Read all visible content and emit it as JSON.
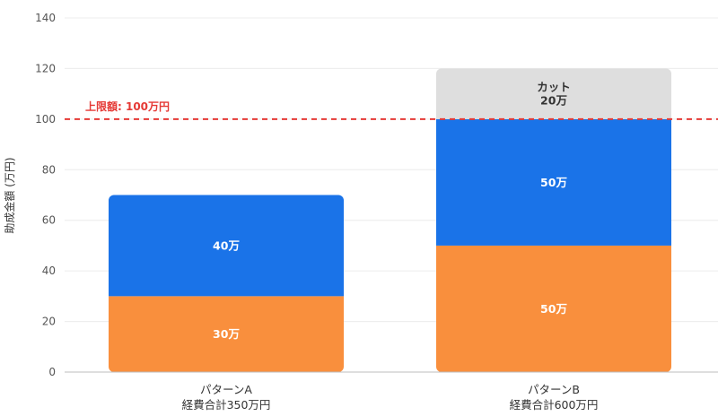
{
  "chart_data": {
    "type": "bar",
    "stacked": true,
    "ylabel": "助成金額 (万円)",
    "ylim": [
      0,
      140
    ],
    "yticks": [
      0,
      20,
      40,
      60,
      80,
      100,
      120,
      140
    ],
    "grid": true,
    "categories": [
      {
        "name": "パターンA",
        "sub": "経費合計350万円"
      },
      {
        "name": "パターンB",
        "sub": "経費合計600万円"
      }
    ],
    "series": [
      {
        "color": "#F98F3D",
        "values": [
          30,
          50
        ],
        "labels": [
          "30万",
          "50万"
        ],
        "label_color": "#ffffff"
      },
      {
        "color": "#1A73E8",
        "values": [
          40,
          50
        ],
        "labels": [
          "40万",
          "50万"
        ],
        "label_color": "#ffffff"
      },
      {
        "color": "#DEDEDE",
        "values": [
          0,
          20
        ],
        "labels": [
          "",
          "カット\n20万"
        ],
        "label_color": "#333333"
      }
    ],
    "reference_line": {
      "value": 100,
      "label": "上限額: 100万円",
      "color": "#E53935",
      "style": "dashed"
    }
  }
}
